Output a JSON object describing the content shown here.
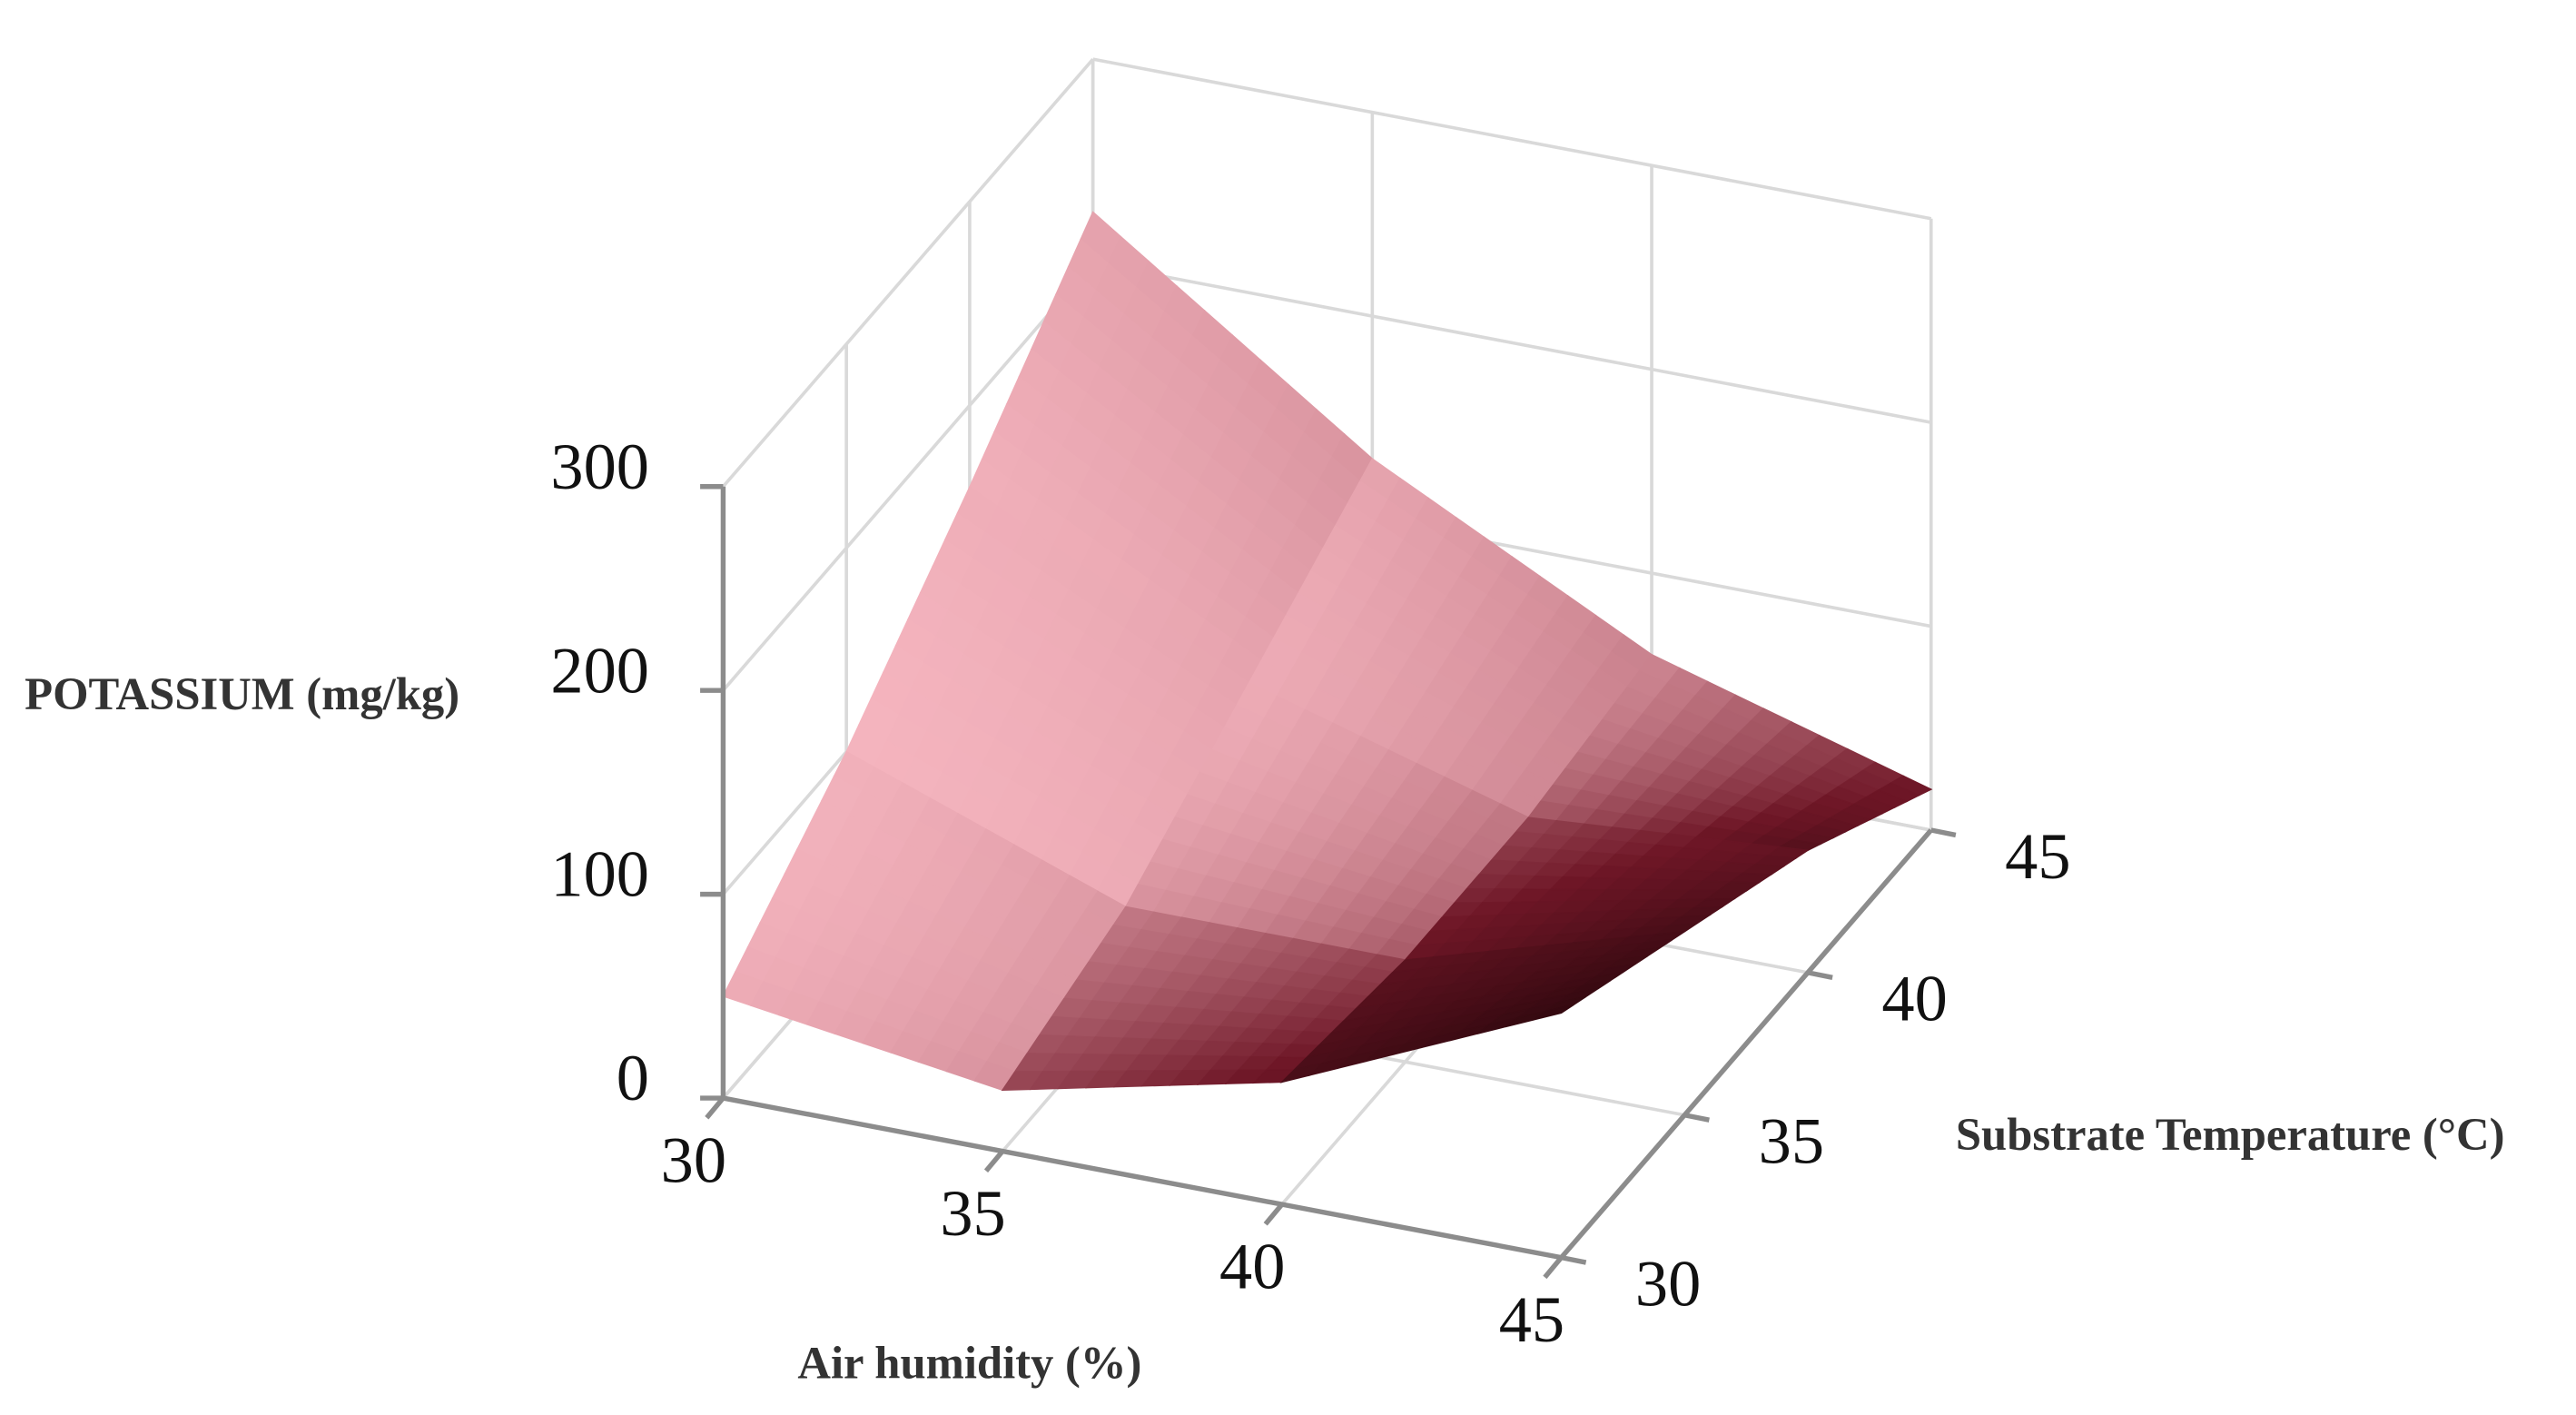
{
  "chart_data": {
    "type": "surface",
    "z_label": "POTASSIUM (mg/kg)",
    "x_label": "Air humidity (%)",
    "y_label": "Substrate Temperature (°C)",
    "x": [
      30,
      35,
      40,
      45
    ],
    "y": [
      30,
      35,
      40,
      45
    ],
    "z": [
      [
        50,
        30,
        60,
        120
      ],
      [
        100,
        50,
        50,
        90
      ],
      [
        160,
        90,
        50,
        60
      ],
      [
        225,
        130,
        60,
        20
      ]
    ],
    "xlim": [
      30,
      45
    ],
    "ylim": [
      30,
      45
    ],
    "zlim": [
      0,
      300
    ],
    "xticks": [
      30,
      35,
      40,
      45
    ],
    "yticks": [
      30,
      35,
      40,
      45
    ],
    "zticks": [
      0,
      100,
      200,
      300
    ],
    "color_low": "#1a0306",
    "color_mid": "#6e1626",
    "color_high": "#f6b6c0",
    "grid": true
  }
}
